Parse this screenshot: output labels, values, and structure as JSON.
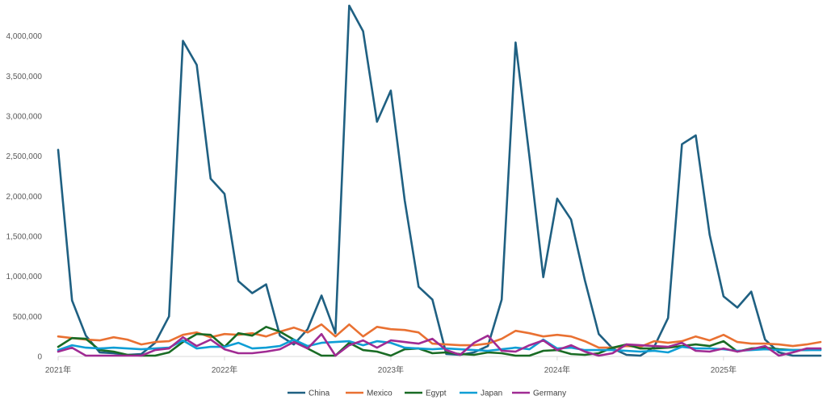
{
  "chart_data": {
    "type": "line",
    "title": "",
    "xlabel": "",
    "ylabel": "",
    "ylim": [
      0,
      4400000
    ],
    "y_ticks": [
      0,
      500000,
      1000000,
      1500000,
      2000000,
      2500000,
      3000000,
      3500000,
      4000000
    ],
    "y_tick_labels": [
      "0",
      "500,000",
      "1,000,000",
      "1,500,000",
      "2,000,000",
      "2,500,000",
      "3,000,000",
      "3,500,000",
      "4,000,000"
    ],
    "x_tick_labels": [
      "2021年",
      "2022年",
      "2023年",
      "2024年",
      "2025年"
    ],
    "x_tick_months": [
      0,
      12,
      24,
      36,
      48
    ],
    "x_count": 56,
    "grid": false,
    "legend_position": "bottom",
    "series": [
      {
        "name": "China",
        "color": "#1f6082",
        "values": [
          2580000,
          700000,
          260000,
          50000,
          40000,
          20000,
          30000,
          170000,
          500000,
          3940000,
          3640000,
          2220000,
          2030000,
          940000,
          790000,
          900000,
          260000,
          150000,
          340000,
          760000,
          290000,
          4380000,
          4060000,
          2930000,
          3320000,
          1950000,
          870000,
          710000,
          30000,
          20000,
          50000,
          130000,
          710000,
          3920000,
          2490000,
          990000,
          1970000,
          1710000,
          950000,
          280000,
          100000,
          20000,
          10000,
          120000,
          480000,
          2650000,
          2760000,
          1520000,
          750000,
          610000,
          810000,
          210000,
          50000,
          10000,
          10000,
          10000
        ]
      },
      {
        "name": "Mexico",
        "color": "#e97132",
        "values": [
          250000,
          230000,
          210000,
          200000,
          240000,
          210000,
          150000,
          180000,
          190000,
          270000,
          300000,
          240000,
          280000,
          270000,
          290000,
          250000,
          310000,
          360000,
          300000,
          400000,
          250000,
          400000,
          250000,
          370000,
          340000,
          330000,
          300000,
          160000,
          150000,
          140000,
          140000,
          160000,
          220000,
          320000,
          290000,
          250000,
          270000,
          250000,
          190000,
          110000,
          110000,
          130000,
          120000,
          190000,
          170000,
          190000,
          250000,
          200000,
          270000,
          180000,
          160000,
          160000,
          150000,
          130000,
          150000,
          180000
        ]
      },
      {
        "name": "Egypt",
        "color": "#196b24",
        "values": [
          120000,
          230000,
          220000,
          80000,
          60000,
          20000,
          10000,
          10000,
          50000,
          180000,
          280000,
          270000,
          120000,
          290000,
          260000,
          370000,
          310000,
          210000,
          100000,
          10000,
          10000,
          170000,
          80000,
          60000,
          10000,
          90000,
          100000,
          40000,
          50000,
          30000,
          20000,
          50000,
          40000,
          10000,
          10000,
          70000,
          80000,
          30000,
          20000,
          40000,
          110000,
          150000,
          100000,
          100000,
          110000,
          130000,
          150000,
          130000,
          190000,
          60000,
          100000,
          110000,
          90000,
          80000,
          80000,
          90000
        ]
      },
      {
        "name": "Japan",
        "color": "#0f9ed5",
        "values": [
          80000,
          140000,
          110000,
          100000,
          110000,
          100000,
          90000,
          100000,
          110000,
          200000,
          100000,
          120000,
          120000,
          170000,
          100000,
          110000,
          130000,
          210000,
          130000,
          170000,
          180000,
          190000,
          140000,
          190000,
          170000,
          110000,
          100000,
          90000,
          100000,
          90000,
          80000,
          70000,
          90000,
          110000,
          90000,
          210000,
          100000,
          110000,
          80000,
          80000,
          80000,
          70000,
          60000,
          70000,
          50000,
          120000,
          100000,
          100000,
          90000,
          70000,
          80000,
          90000,
          80000,
          80000,
          80000,
          80000
        ]
      },
      {
        "name": "Germany",
        "color": "#a02b93",
        "values": [
          60000,
          110000,
          10000,
          10000,
          10000,
          10000,
          10000,
          80000,
          100000,
          240000,
          130000,
          210000,
          90000,
          40000,
          40000,
          60000,
          90000,
          180000,
          100000,
          280000,
          10000,
          140000,
          200000,
          110000,
          200000,
          180000,
          160000,
          220000,
          80000,
          20000,
          170000,
          260000,
          70000,
          60000,
          140000,
          200000,
          80000,
          140000,
          60000,
          10000,
          40000,
          150000,
          140000,
          130000,
          120000,
          170000,
          70000,
          60000,
          100000,
          60000,
          90000,
          130000,
          10000,
          50000,
          100000,
          100000
        ]
      }
    ]
  }
}
